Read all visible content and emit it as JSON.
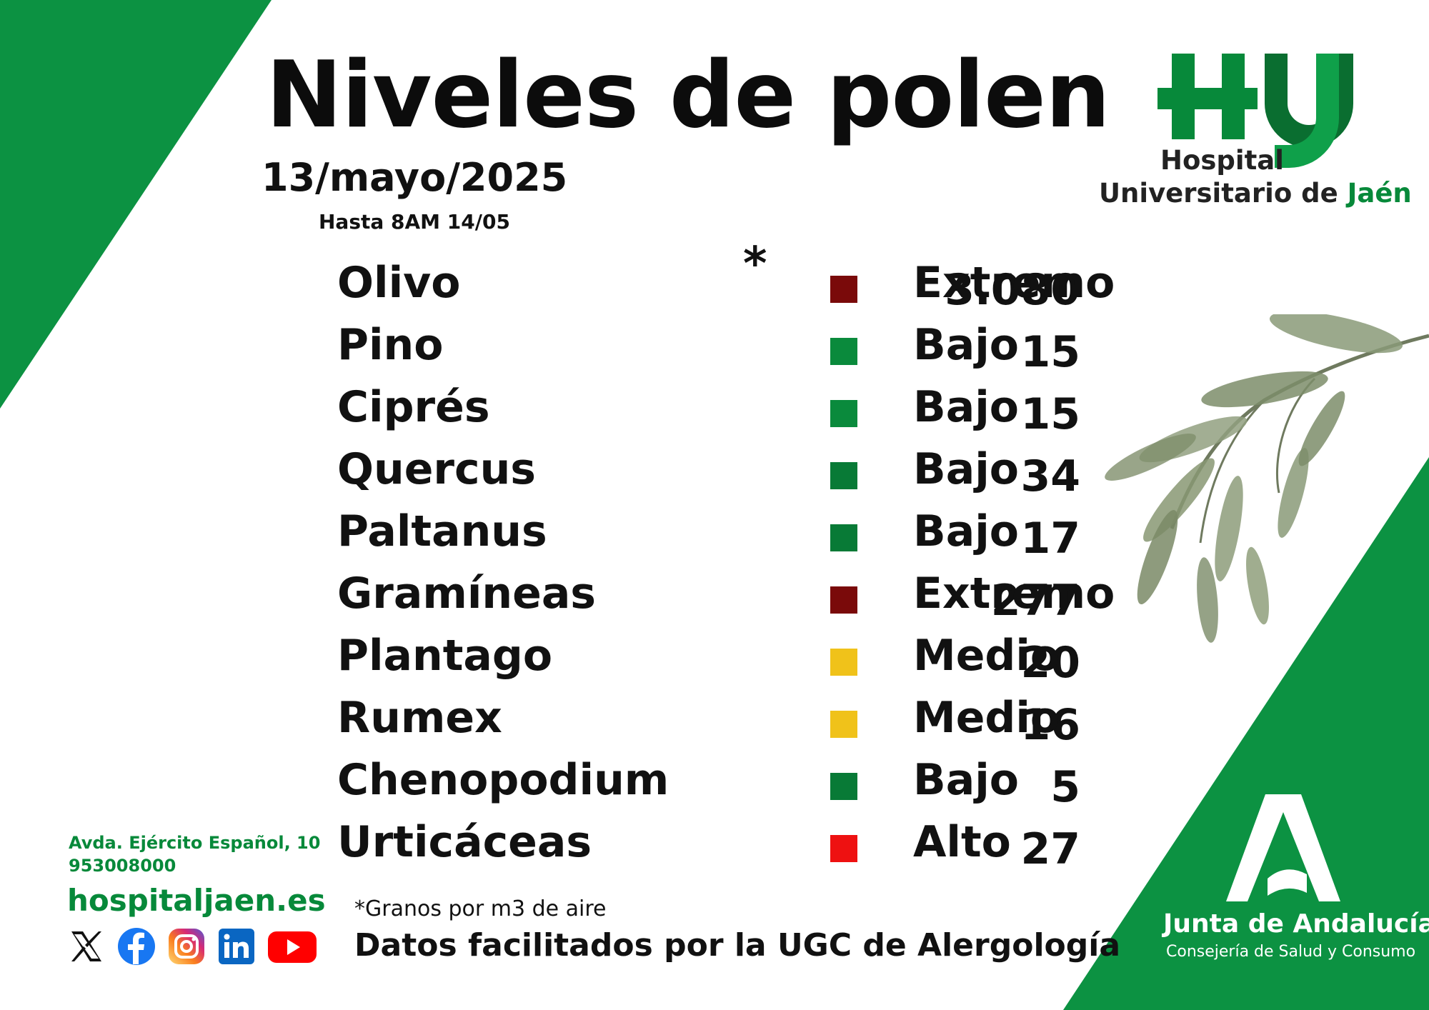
{
  "header": {
    "title": "Niveles de polen",
    "date": "13/mayo/2025",
    "valid_until": "Hasta 8AM 14/05"
  },
  "hospital_logo": {
    "line1": "Hospital",
    "line2_a": "Universitario de ",
    "line2_b": "Jaén"
  },
  "pollen": {
    "asterisk": "*",
    "rows": [
      {
        "name": "Olivo",
        "value": "3.080",
        "level": "Extremo",
        "color": "#7a0a0a"
      },
      {
        "name": "Pino",
        "value": "15",
        "level": "Bajo",
        "color": "#0a8a3c"
      },
      {
        "name": "Ciprés",
        "value": "15",
        "level": "Bajo",
        "color": "#0a8a3c"
      },
      {
        "name": "Quercus",
        "value": "34",
        "level": "Bajo",
        "color": "#087a36"
      },
      {
        "name": "Paltanus",
        "value": "17",
        "level": "Bajo",
        "color": "#087a36"
      },
      {
        "name": "Gramíneas",
        "value": "277",
        "level": "Extremo",
        "color": "#7a0a0a"
      },
      {
        "name": "Plantago",
        "value": "20",
        "level": "Medio",
        "color": "#f0c21a"
      },
      {
        "name": "Rumex",
        "value": "16",
        "level": "Medio",
        "color": "#f0c21a"
      },
      {
        "name": "Chenopodium",
        "value": "5",
        "level": "Bajo",
        "color": "#087a36"
      },
      {
        "name": "Urticáceas",
        "value": "27",
        "level": "Alto",
        "color": "#ee1111"
      }
    ]
  },
  "footer": {
    "units_note": "*Granos por m3 de aire",
    "source_note": "Datos facilitados por la UGC de Alergología",
    "address": "Avda. Ejército Español, 10",
    "phone": "953008000",
    "website": "hospitaljaen.es",
    "social_icons": [
      "x-icon",
      "facebook-icon",
      "instagram-icon",
      "linkedin-icon",
      "youtube-icon"
    ]
  },
  "junta": {
    "name": "Junta de Andalucía",
    "department": "Consejería de Salud y Consumo"
  },
  "colors": {
    "brand_green": "#07893a",
    "band_green": "#0c9242"
  }
}
